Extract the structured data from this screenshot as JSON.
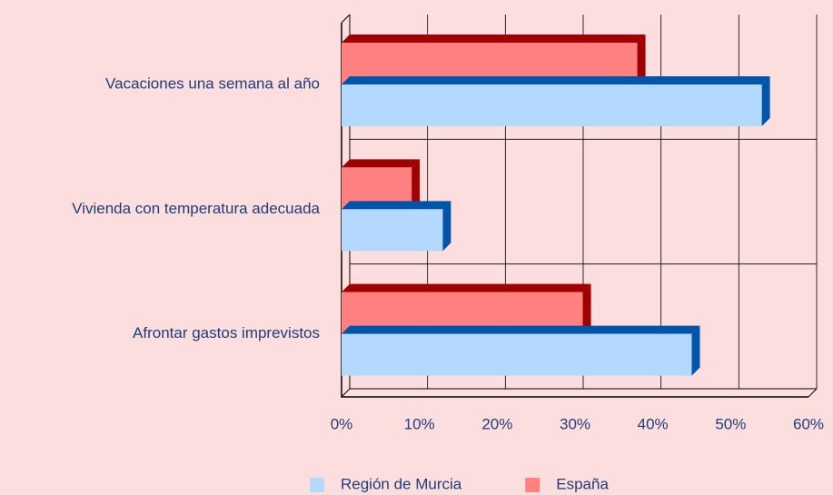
{
  "chart_data": {
    "type": "bar3d",
    "categories": [
      "Vacaciones una semana al año",
      "Vivienda con temperatura adecuada",
      "Afrontar gastos imprevistos"
    ],
    "series": [
      {
        "name": "España",
        "color": "#ff8080",
        "side_color": "#a00000",
        "values": [
          38,
          9,
          31
        ]
      },
      {
        "name": "Región de Murcia",
        "color": "#b3d9ff",
        "side_color": "#0055aa",
        "values": [
          54,
          13,
          45
        ]
      }
    ],
    "legend_order": [
      1,
      0
    ],
    "xlim": [
      0,
      60
    ],
    "xticks": [
      {
        "value": 0,
        "label": "0%"
      },
      {
        "value": 10,
        "label": "10%"
      },
      {
        "value": 20,
        "label": "20%"
      },
      {
        "value": 30,
        "label": "30%"
      },
      {
        "value": 40,
        "label": "40%"
      },
      {
        "value": 50,
        "label": "50%"
      },
      {
        "value": 60,
        "label": "60%"
      }
    ],
    "grid": true,
    "legend": "bottom"
  }
}
